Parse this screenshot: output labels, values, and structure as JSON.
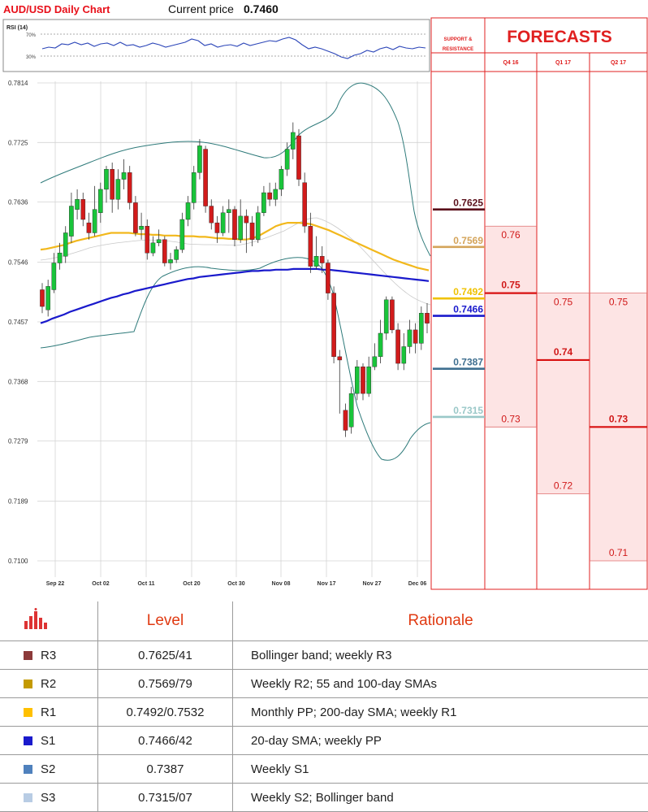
{
  "header": {
    "title": "AUD/USD Daily Chart",
    "current_label": "Current price",
    "current_price": "0.7460",
    "rsi_label": "RSI (14)",
    "rsi_ticks": [
      "70%",
      "30%"
    ]
  },
  "side": {
    "sr_title_1": "SUPPORT &",
    "sr_title_2": "RESISTANCE",
    "forecasts_title": "FORECASTS"
  },
  "chart_data": {
    "type": "candlestick",
    "y_ticks": [
      "0.7814",
      "0.7725",
      "0.7636",
      "0.7546",
      "0.7457",
      "0.7368",
      "0.7279",
      "0.7189",
      "0.7100"
    ],
    "ylim": [
      0.71,
      0.7814
    ],
    "x_labels": [
      "Sep 22",
      "Oct 02",
      "Oct 11",
      "Oct 20",
      "Oct 30",
      "Nov 08",
      "Nov 17",
      "Nov 27",
      "Dec 06"
    ],
    "candles": [
      [
        0.7505,
        0.748,
        0.7515,
        0.747
      ],
      [
        0.7475,
        0.751,
        0.752,
        0.7465
      ],
      [
        0.7505,
        0.7545,
        0.756,
        0.75
      ],
      [
        0.7545,
        0.756,
        0.7575,
        0.7535
      ],
      [
        0.7555,
        0.759,
        0.76,
        0.7545
      ],
      [
        0.7585,
        0.763,
        0.765,
        0.7575
      ],
      [
        0.7625,
        0.764,
        0.7655,
        0.761
      ],
      [
        0.764,
        0.761,
        0.765,
        0.76
      ],
      [
        0.7605,
        0.759,
        0.762,
        0.758
      ],
      [
        0.759,
        0.7625,
        0.766,
        0.7585
      ],
      [
        0.762,
        0.7655,
        0.7665,
        0.7605
      ],
      [
        0.7655,
        0.7685,
        0.769,
        0.7635
      ],
      [
        0.7685,
        0.764,
        0.7695,
        0.762
      ],
      [
        0.764,
        0.767,
        0.7685,
        0.7625
      ],
      [
        0.767,
        0.768,
        0.77,
        0.7655
      ],
      [
        0.768,
        0.7635,
        0.769,
        0.7625
      ],
      [
        0.7635,
        0.759,
        0.7645,
        0.7585
      ],
      [
        0.7595,
        0.76,
        0.762,
        0.758
      ],
      [
        0.76,
        0.756,
        0.761,
        0.755
      ],
      [
        0.756,
        0.7575,
        0.7585,
        0.7555
      ],
      [
        0.7575,
        0.758,
        0.7595,
        0.757
      ],
      [
        0.758,
        0.7545,
        0.7585,
        0.754
      ],
      [
        0.7545,
        0.755,
        0.756,
        0.7535
      ],
      [
        0.755,
        0.7565,
        0.757,
        0.7545
      ],
      [
        0.7565,
        0.761,
        0.762,
        0.756
      ],
      [
        0.761,
        0.7635,
        0.7645,
        0.76
      ],
      [
        0.7635,
        0.768,
        0.769,
        0.7625
      ],
      [
        0.768,
        0.772,
        0.773,
        0.767
      ],
      [
        0.7715,
        0.763,
        0.772,
        0.762
      ],
      [
        0.763,
        0.7605,
        0.764,
        0.7595
      ],
      [
        0.7605,
        0.759,
        0.7615,
        0.7575
      ],
      [
        0.759,
        0.762,
        0.763,
        0.7585
      ],
      [
        0.762,
        0.7625,
        0.764,
        0.759
      ],
      [
        0.7625,
        0.758,
        0.763,
        0.757
      ],
      [
        0.758,
        0.7615,
        0.764,
        0.7575
      ],
      [
        0.7615,
        0.7605,
        0.7625,
        0.756
      ],
      [
        0.7605,
        0.758,
        0.7615,
        0.757
      ],
      [
        0.758,
        0.762,
        0.763,
        0.7575
      ],
      [
        0.762,
        0.765,
        0.766,
        0.7615
      ],
      [
        0.765,
        0.764,
        0.7665,
        0.763
      ],
      [
        0.764,
        0.7655,
        0.7665,
        0.763
      ],
      [
        0.7655,
        0.7685,
        0.769,
        0.7645
      ],
      [
        0.7685,
        0.7715,
        0.7725,
        0.7675
      ],
      [
        0.7715,
        0.774,
        0.7755,
        0.77
      ],
      [
        0.7735,
        0.767,
        0.7745,
        0.766
      ],
      [
        0.7665,
        0.76,
        0.768,
        0.759
      ],
      [
        0.76,
        0.754,
        0.762,
        0.753
      ],
      [
        0.754,
        0.7555,
        0.7585,
        0.7535
      ],
      [
        0.7555,
        0.7545,
        0.757,
        0.753
      ],
      [
        0.7545,
        0.75,
        0.755,
        0.749
      ],
      [
        0.75,
        0.7405,
        0.751,
        0.7395
      ],
      [
        0.7405,
        0.74,
        0.7415,
        0.732
      ],
      [
        0.7325,
        0.7295,
        0.7335,
        0.7285
      ],
      [
        0.73,
        0.735,
        0.736,
        0.729
      ],
      [
        0.735,
        0.739,
        0.74,
        0.734
      ],
      [
        0.739,
        0.735,
        0.7395,
        0.734
      ],
      [
        0.735,
        0.739,
        0.7405,
        0.7345
      ],
      [
        0.739,
        0.7405,
        0.7425,
        0.7385
      ],
      [
        0.7405,
        0.744,
        0.746,
        0.7395
      ],
      [
        0.744,
        0.749,
        0.7495,
        0.743
      ],
      [
        0.749,
        0.7445,
        0.7495,
        0.744
      ],
      [
        0.7445,
        0.7395,
        0.7455,
        0.7385
      ],
      [
        0.7395,
        0.742,
        0.744,
        0.7385
      ],
      [
        0.742,
        0.7445,
        0.746,
        0.741
      ],
      [
        0.7445,
        0.7425,
        0.7455,
        0.741
      ],
      [
        0.7425,
        0.747,
        0.748,
        0.7415
      ],
      [
        0.747,
        0.7455,
        0.7485,
        0.744
      ]
    ],
    "sma200": [
      0.7455,
      0.7458,
      0.7462,
      0.7465,
      0.7468,
      0.7472,
      0.7475,
      0.7478,
      0.7481,
      0.7484,
      0.7487,
      0.749,
      0.7493,
      0.7495,
      0.7498,
      0.75,
      0.7503,
      0.7505,
      0.7507,
      0.7509,
      0.7511,
      0.7513,
      0.7515,
      0.7517,
      0.7519,
      0.7521,
      0.7522,
      0.7524,
      0.7525,
      0.7526,
      0.7527,
      0.7528,
      0.7529,
      0.753,
      0.7531,
      0.7532,
      0.7533,
      0.7533,
      0.7534,
      0.7534,
      0.7535,
      0.7535,
      0.7535,
      0.7536,
      0.7536,
      0.7536,
      0.7536,
      0.7536,
      0.7535,
      0.7535,
      0.7534,
      0.7533,
      0.7532,
      0.7531,
      0.753,
      0.7529,
      0.7528,
      0.7527,
      0.7526,
      0.7525,
      0.7524,
      0.7523,
      0.7522,
      0.7521,
      0.752,
      0.7519,
      0.7518
    ],
    "sma100": [
      0.7565,
      0.7566,
      0.7568,
      0.757,
      0.7572,
      0.7575,
      0.7578,
      0.758,
      0.7582,
      0.7584,
      0.7586,
      0.7588,
      0.759,
      0.759,
      0.759,
      0.759,
      0.7589,
      0.7588,
      0.7588,
      0.7587,
      0.7587,
      0.7586,
      0.7586,
      0.7586,
      0.7585,
      0.7585,
      0.7585,
      0.7584,
      0.7584,
      0.7583,
      0.7582,
      0.7582,
      0.7581,
      0.7581,
      0.758,
      0.758,
      0.7582,
      0.7585,
      0.759,
      0.7595,
      0.76,
      0.7603,
      0.7605,
      0.7605,
      0.7605,
      0.7604,
      0.7603,
      0.76,
      0.7597,
      0.7594,
      0.759,
      0.7586,
      0.7582,
      0.7578,
      0.7574,
      0.757,
      0.7566,
      0.7562,
      0.7558,
      0.7554,
      0.755,
      0.7547,
      0.7544,
      0.7541,
      0.7538,
      0.7536,
      0.7534
    ]
  },
  "sr_levels": [
    {
      "label": "0.7625",
      "value": 0.7625,
      "color": "#5a0f1a"
    },
    {
      "label": "0.7569",
      "value": 0.7569,
      "color": "#d4a45a"
    },
    {
      "label": "0.7492",
      "value": 0.7492,
      "color": "#f0c200"
    },
    {
      "label": "0.7466",
      "value": 0.7466,
      "color": "#1a1acc"
    },
    {
      "label": "0.7387",
      "value": 0.7387,
      "color": "#3f6f90"
    },
    {
      "label": "0.7315",
      "value": 0.7315,
      "color": "#9ac8c8"
    }
  ],
  "forecasts": [
    {
      "period": "Q4 16",
      "high": "0.76",
      "high_value": 0.76,
      "mid": "0.75",
      "mid_value": 0.75,
      "low": "0.73",
      "low_value": 0.73
    },
    {
      "period": "Q1 17",
      "high": "0.75",
      "high_value": 0.75,
      "mid": "0.74",
      "mid_value": 0.74,
      "low": "0.72",
      "low_value": 0.72
    },
    {
      "period": "Q2 17",
      "high": "0.75",
      "high_value": 0.75,
      "mid": "0.73",
      "mid_value": 0.73,
      "low": "0.71",
      "low_value": 0.71
    }
  ],
  "table": {
    "col_level": "Level",
    "col_rationale": "Rationale",
    "rows": [
      {
        "code": "R3",
        "level": "0.7625/41",
        "rationale": "Bollinger band; weekly R3",
        "color": "#8c3a3a"
      },
      {
        "code": "R2",
        "level": "0.7569/79",
        "rationale": "Weekly R2; 55 and 100-day SMAs",
        "color": "#c49a00"
      },
      {
        "code": "R1",
        "level": "0.7492/0.7532",
        "rationale": "Monthly PP; 200-day SMA; weekly R1",
        "color": "#ffc000"
      },
      {
        "code": "S1",
        "level": "0.7466/42",
        "rationale": "20-day SMA; weekly PP",
        "color": "#1a1acc"
      },
      {
        "code": "S2",
        "level": "0.7387",
        "rationale": "Weekly S1",
        "color": "#4f81bd"
      },
      {
        "code": "S3",
        "level": "0.7315/07",
        "rationale": "Weekly S2; Bollinger band",
        "color": "#b8cce4"
      }
    ]
  }
}
